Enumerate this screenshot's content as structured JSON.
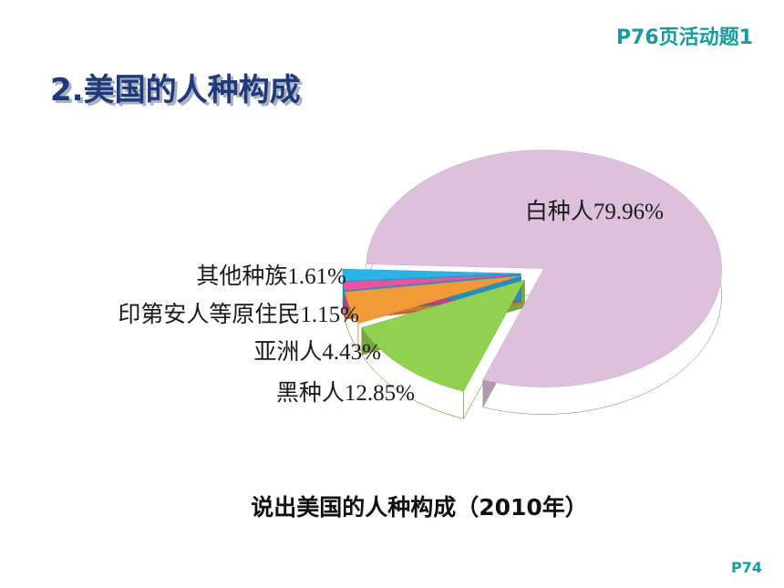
{
  "header": {
    "activity": "P76页活动题1",
    "title": "2.美国的人种构成"
  },
  "chart_data": {
    "type": "pie",
    "categories": [
      "白种人",
      "黑种人",
      "亚洲人",
      "印第安人等原住民",
      "其他种族"
    ],
    "values": [
      79.96,
      12.85,
      4.43,
      1.15,
      1.61
    ],
    "value_labels": [
      "79.96%",
      "12.85%",
      "4.43%",
      "1.15%",
      "1.61%"
    ],
    "colors": [
      "#dcc0dc",
      "#92d050",
      "#f29a3a",
      "#e8559e",
      "#2ab4e6"
    ]
  },
  "caption": "说出美国的人种构成（2010年）",
  "page_ref": "P74"
}
